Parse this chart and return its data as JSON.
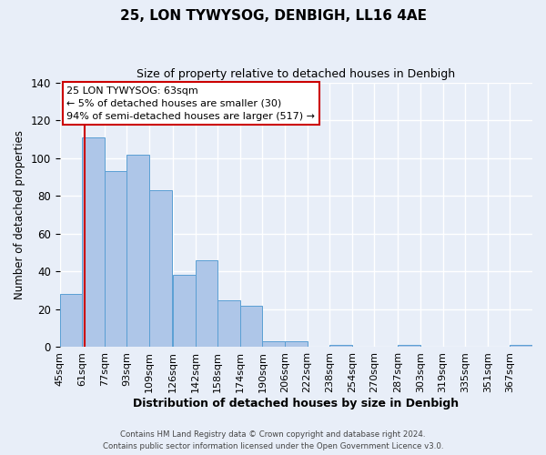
{
  "title": "25, LON TYWYSOG, DENBIGH, LL16 4AE",
  "subtitle": "Size of property relative to detached houses in Denbigh",
  "xlabel": "Distribution of detached houses by size in Denbigh",
  "ylabel": "Number of detached properties",
  "bin_labels": [
    "45sqm",
    "61sqm",
    "77sqm",
    "93sqm",
    "109sqm",
    "126sqm",
    "142sqm",
    "158sqm",
    "174sqm",
    "190sqm",
    "206sqm",
    "222sqm",
    "238sqm",
    "254sqm",
    "270sqm",
    "287sqm",
    "303sqm",
    "319sqm",
    "335sqm",
    "351sqm",
    "367sqm"
  ],
  "bin_edges": [
    45,
    61,
    77,
    93,
    109,
    126,
    142,
    158,
    174,
    190,
    206,
    222,
    238,
    254,
    270,
    287,
    303,
    319,
    335,
    351,
    367
  ],
  "bar_values": [
    28,
    111,
    93,
    102,
    83,
    38,
    46,
    25,
    22,
    3,
    3,
    0,
    1,
    0,
    0,
    1,
    0,
    0,
    0,
    0,
    1
  ],
  "bar_color": "#aec6e8",
  "bar_edge_color": "#5a9fd4",
  "property_line_x": 63,
  "property_line_color": "#cc0000",
  "annotation_title": "25 LON TYWYSOG: 63sqm",
  "annotation_line1": "← 5% of detached houses are smaller (30)",
  "annotation_line2": "94% of semi-detached houses are larger (517) →",
  "annotation_box_color": "white",
  "annotation_box_edge_color": "#cc0000",
  "ylim": [
    0,
    140
  ],
  "yticks": [
    0,
    20,
    40,
    60,
    80,
    100,
    120,
    140
  ],
  "footer_line1": "Contains HM Land Registry data © Crown copyright and database right 2024.",
  "footer_line2": "Contains public sector information licensed under the Open Government Licence v3.0.",
  "background_color": "#e8eef8",
  "grid_color": "white"
}
